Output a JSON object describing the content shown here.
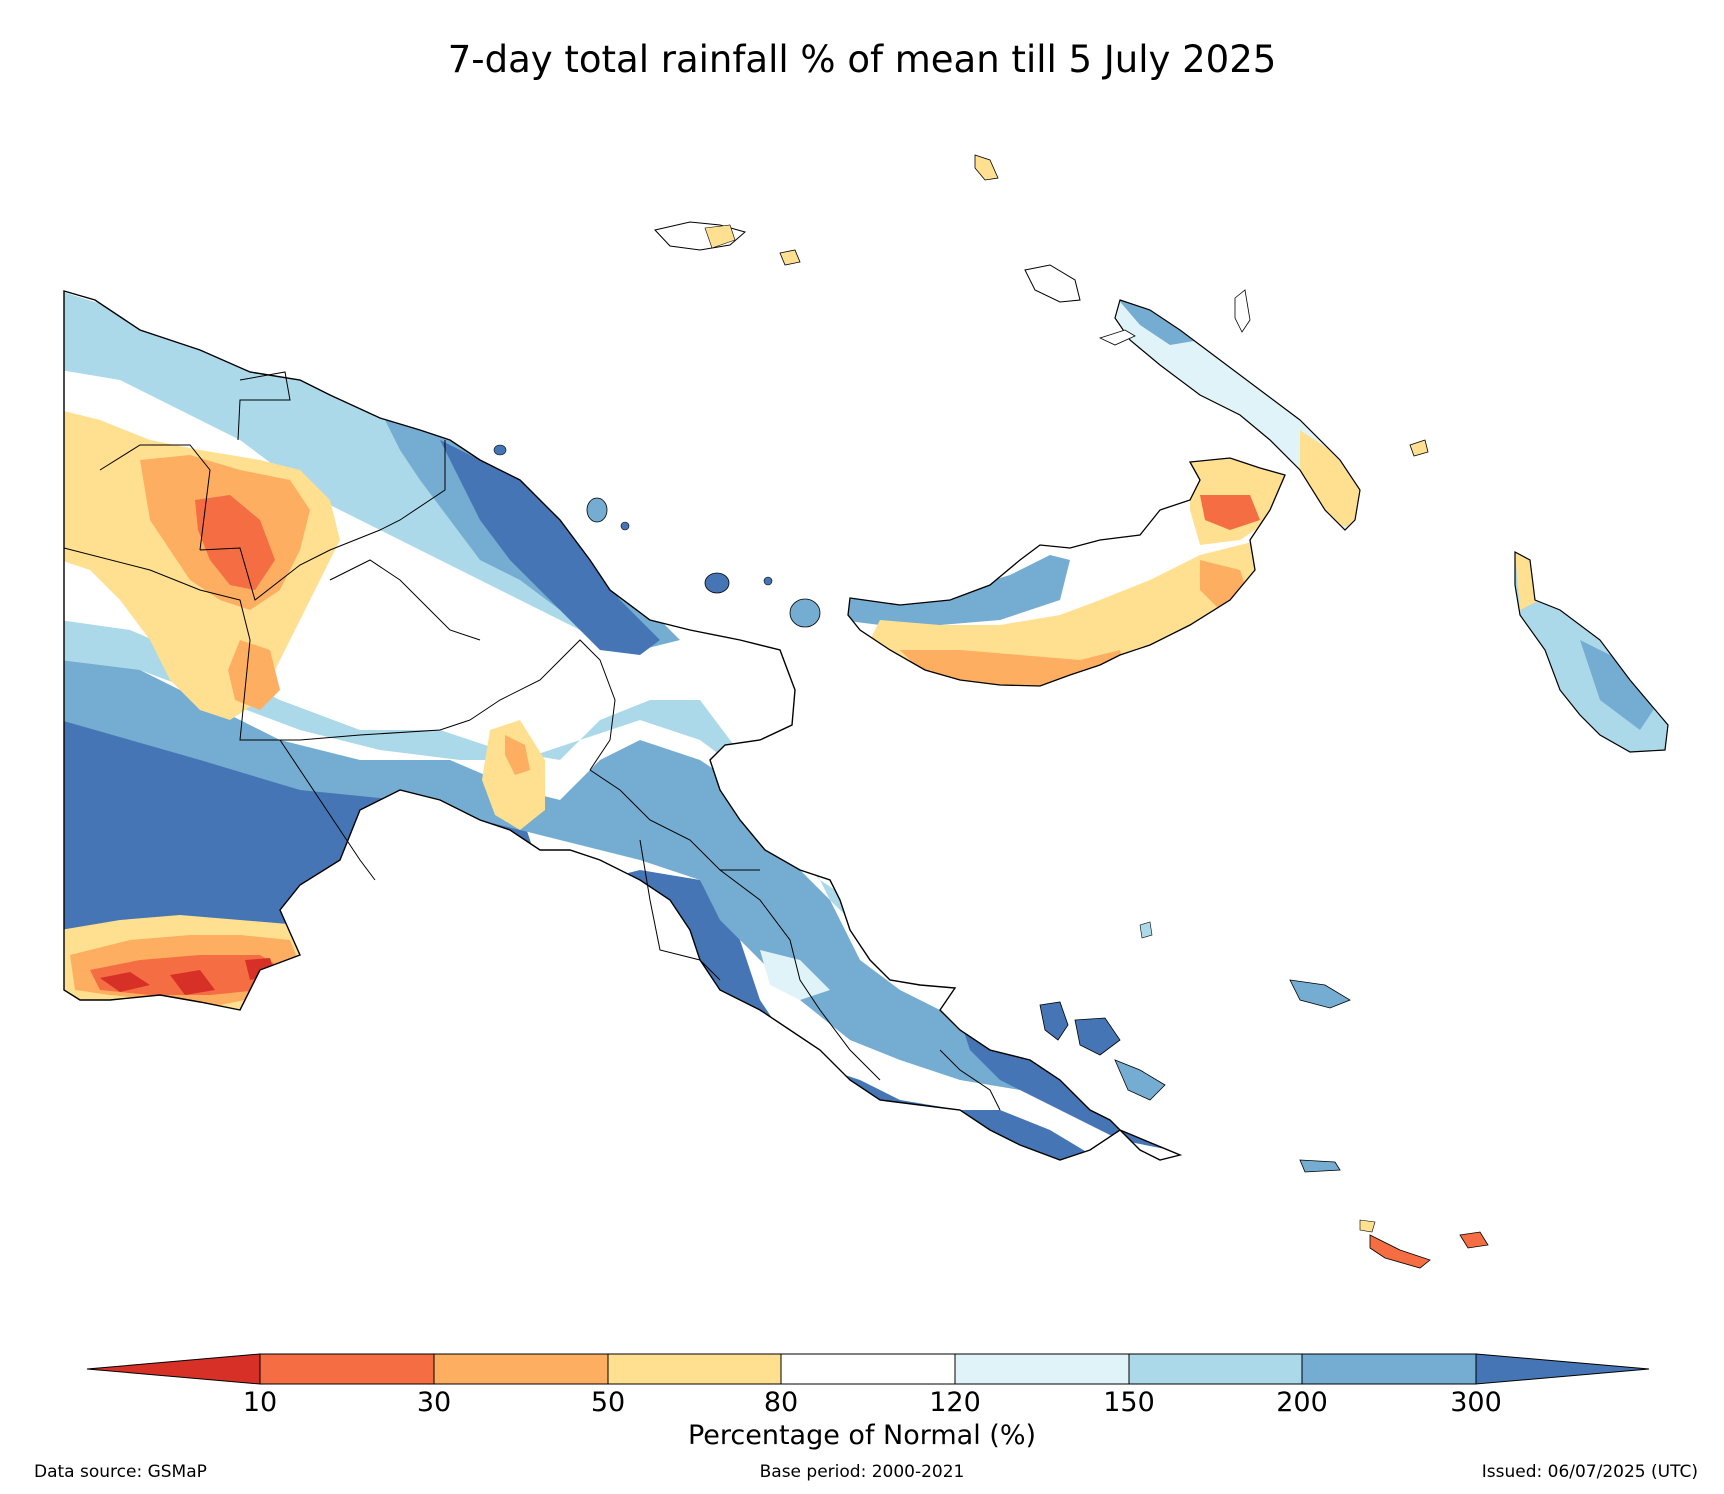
{
  "title": "7-day total rainfall % of mean till 5 July 2025",
  "legend": {
    "title": "Percentage of Normal (%)",
    "ticks": [
      "10",
      "30",
      "50",
      "80",
      "120",
      "150",
      "200",
      "300"
    ],
    "colors": [
      "#d73027",
      "#f46d43",
      "#fdae61",
      "#fee090",
      "#ffffff",
      "#e0f3f8",
      "#abd9e9",
      "#74add1",
      "#4575b4"
    ]
  },
  "footer": {
    "source": "Data source: GSMaP",
    "base_period": "Base period: 2000-2021",
    "issued": "Issued: 06/07/2025 (UTC)"
  }
}
